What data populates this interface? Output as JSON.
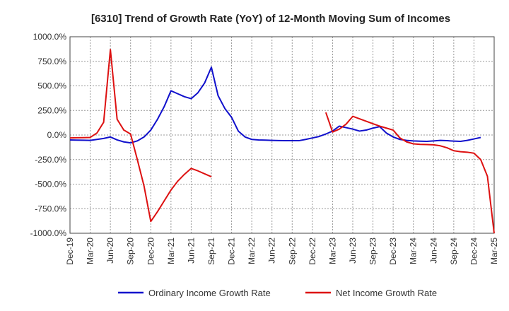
{
  "chart_data": {
    "type": "line",
    "title": "[6310]  Trend of Growth Rate (YoY) of 12-Month Moving Sum of Incomes",
    "xlabel": "",
    "ylabel": "",
    "ylim": [
      -1000,
      1000
    ],
    "y_ticks": [
      1000,
      750,
      500,
      250,
      0,
      -250,
      -500,
      -750,
      -1000
    ],
    "y_tick_labels": [
      "1000.0%",
      "750.0%",
      "500.0%",
      "250.0%",
      "0.0%",
      "-250.0%",
      "-500.0%",
      "-750.0%",
      "-1000.0%"
    ],
    "x_start": "Dec-19",
    "x_tick_labels": [
      "Dec-19",
      "Mar-20",
      "Jun-20",
      "Sep-20",
      "Dec-20",
      "Mar-21",
      "Jun-21",
      "Sep-21",
      "Dec-21",
      "Mar-22",
      "Jun-22",
      "Sep-22",
      "Dec-22",
      "Mar-23",
      "Jun-23",
      "Sep-23",
      "Dec-23",
      "Mar-24",
      "Jun-24",
      "Sep-24",
      "Dec-24",
      "Mar-25"
    ],
    "grid": true,
    "legend_position": "bottom",
    "series": [
      {
        "name": "Ordinary Income Growth Rate",
        "color": "#1010cc",
        "values": [
          -50,
          -52,
          -53,
          -55,
          -45,
          -35,
          -20,
          -50,
          -70,
          -80,
          -60,
          -20,
          50,
          160,
          290,
          450,
          420,
          390,
          370,
          430,
          530,
          690,
          400,
          270,
          180,
          40,
          -20,
          -45,
          -50,
          -52,
          -55,
          -57,
          -58,
          -58,
          -58,
          -45,
          -30,
          -15,
          10,
          40,
          90,
          75,
          60,
          40,
          50,
          70,
          85,
          20,
          -20,
          -45,
          -55,
          -60,
          -63,
          -65,
          -60,
          -55,
          -58,
          -62,
          -65,
          -55,
          -40,
          -25
        ]
      },
      {
        "name": "Net Income Growth Rate",
        "color": "#dd1111",
        "values": [
          -30,
          -28,
          -27,
          -25,
          20,
          130,
          870,
          160,
          50,
          10,
          -250,
          -520,
          -880,
          -780,
          -670,
          -560,
          -470,
          -400,
          -340,
          -365,
          -395,
          -425,
          null,
          null,
          null,
          null,
          null,
          null,
          null,
          null,
          null,
          null,
          null,
          null,
          null,
          null,
          null,
          null,
          230,
          30,
          60,
          110,
          190,
          165,
          140,
          115,
          90,
          70,
          50,
          -30,
          -70,
          -90,
          -95,
          -97,
          -100,
          -110,
          -130,
          -160,
          -170,
          -175,
          -185,
          -250,
          -420,
          -1000
        ]
      }
    ]
  }
}
